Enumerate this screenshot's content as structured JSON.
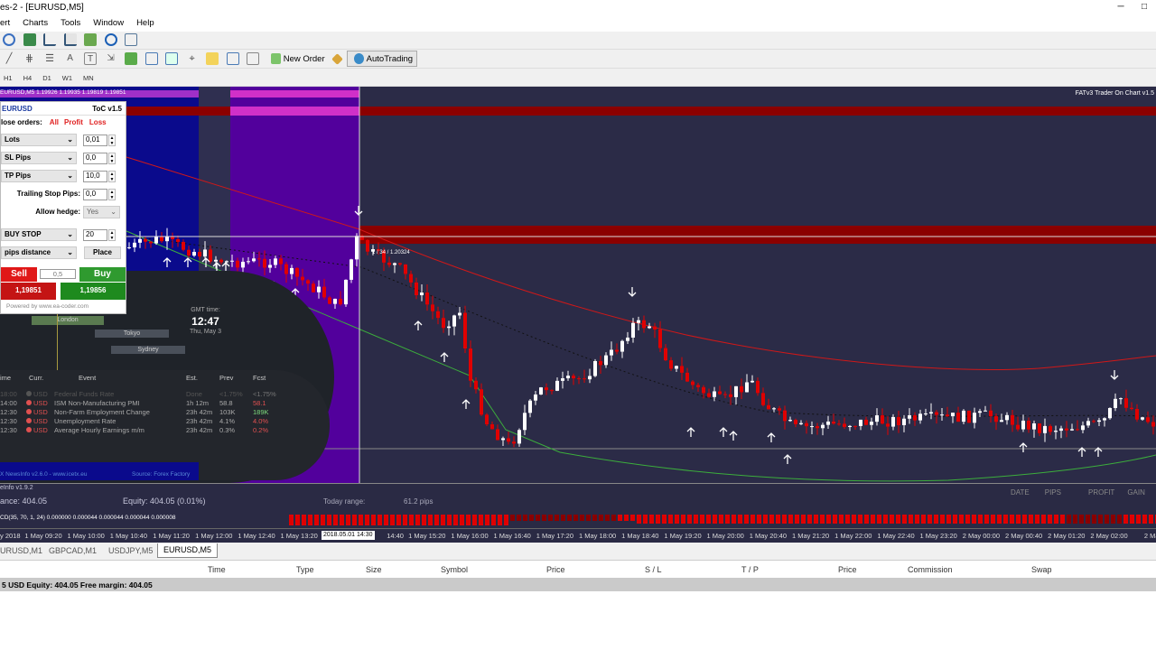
{
  "window": {
    "title": "es-2 - [EURUSD,M5]",
    "controls": [
      "─",
      "□"
    ]
  },
  "menu": [
    "ert",
    "Charts",
    "Tools",
    "Window",
    "Help"
  ],
  "toolbar": {
    "new_order": "New Order",
    "autotrading": "AutoTrading",
    "periods": [
      "H1",
      "H4",
      "D1",
      "W1",
      "MN"
    ]
  },
  "chart": {
    "info": "EURUSD,M5  1.19926 1.19935 1.19819 1.19851",
    "top_right_label": "FATv3 Trader On Chart v1.5",
    "crosshair_label": "1 / 34 / 1.20324",
    "colors": {
      "bg": "#2b2b47",
      "bull": "#ffffff",
      "bear": "#e00000",
      "ma_red": "#d01818",
      "ma_green": "#3cae3c",
      "zone_blue": "#0a0a8c",
      "zone_purple": "#52009c",
      "band_red": "#8b0000"
    }
  },
  "trade_panel": {
    "symbol": "EURUSD",
    "version": "ToC v1.5",
    "close_orders_label": "lose orders:",
    "close_all": "All",
    "close_profit": "Profit",
    "close_loss": "Loss",
    "lots_label": "Lots",
    "lots_value": "0,01",
    "sl_label": "SL Pips",
    "sl_value": "0,0",
    "tp_label": "TP Pips",
    "tp_value": "10,0",
    "trailing_label": "Trailing Stop Pips:",
    "trailing_value": "0,0",
    "hedge_label": "Allow hedge:",
    "hedge_value": "Yes",
    "order_type": "BUY STOP",
    "distance_value": "20",
    "distance_label": "pips distance",
    "place": "Place",
    "sell_label": "Sell",
    "sell_price": "1,19851",
    "spread": "0,5",
    "buy_label": "Buy",
    "buy_price": "1,19856",
    "powered": "Powered by www.ea-coder.com"
  },
  "clock": {
    "label": "GMT time:",
    "time": "12:47",
    "date": "Thu, May 3",
    "sessions": [
      "London",
      "Tokyo",
      "Sydney"
    ]
  },
  "news": {
    "headers": [
      "ime",
      "Curr.",
      "Event",
      "Est.",
      "Prev",
      "Fcst"
    ],
    "rows": [
      {
        "time": "18:00",
        "curr": "USD",
        "event": "Federal Funds Rate",
        "est": "Done",
        "prev": "<1.75%",
        "fcst": "<1.75%",
        "fcst_color": "#777",
        "dim": true
      },
      {
        "time": "14:00",
        "curr": "USD",
        "event": "ISM Non-Manufacturing PMI",
        "est": "1h 12m",
        "prev": "58.8",
        "fcst": "58.1",
        "fcst_color": "#e05050"
      },
      {
        "time": "12:30",
        "curr": "USD",
        "event": "Non-Farm Employment Change",
        "est": "23h 42m",
        "prev": "103K",
        "fcst": "189K",
        "fcst_color": "#7ddc7d"
      },
      {
        "time": "12:30",
        "curr": "USD",
        "event": "Unemployment Rate",
        "est": "23h 42m",
        "prev": "4.1%",
        "fcst": "4.0%",
        "fcst_color": "#e05050"
      },
      {
        "time": "12:30",
        "curr": "USD",
        "event": "Average Hourly Earnings m/m",
        "est": "23h 42m",
        "prev": "0.3%",
        "fcst": "0.2%",
        "fcst_color": "#e05050"
      }
    ],
    "footer": "X NewsInfo v2.6.0 - www.icetx.eu",
    "source": "Source: Forex Factory"
  },
  "info": {
    "title": "eInfo v1.9.2",
    "balance": "ance:  404.05",
    "equity": "Equity:  404.05  (0.01%)",
    "today_range_label": "Today range:",
    "today_range": "61.2 pips",
    "stats_headers": [
      "DATE",
      "PIPS",
      "PROFIT",
      "GAIN"
    ]
  },
  "macd_label": "CD(35, 70, 1, 24) 0.000000 0.000044 0.000044 0.000044 0.000008",
  "time_axis": {
    "labels": [
      "y 2018",
      "1 May 09:20",
      "1 May 10:00",
      "1 May 10:40",
      "1 May 11:20",
      "1 May 12:00",
      "1 May 12:40",
      "1 May 13:20",
      "",
      "14:40",
      "1 May 15:20",
      "1 May 16:00",
      "1 May 16:40",
      "1 May 17:20",
      "1 May 18:00",
      "1 May 18:40",
      "1 May 19:20",
      "1 May 20:00",
      "1 May 20:40",
      "1 May 21:20",
      "1 May 22:00",
      "1 May 22:40",
      "1 May 23:20",
      "2 May 00:00",
      "2 May 00:40",
      "2 May 01:20",
      "2 May 02:00",
      "2 Ma"
    ],
    "crosshair": "2018.05.01 14:30"
  },
  "tabs": [
    "URUSD,M1",
    "GBPCAD,M1",
    "USDJPY,M5",
    "EURUSD,M5"
  ],
  "active_tab": "EURUSD,M5",
  "terminal": {
    "columns": [
      "Time",
      "Type",
      "Size",
      "Symbol",
      "Price",
      "S / L",
      "T / P",
      "Price",
      "Commission",
      "Swap"
    ]
  },
  "status": "5 USD  Equity: 404.05  Free margin: 404.05"
}
